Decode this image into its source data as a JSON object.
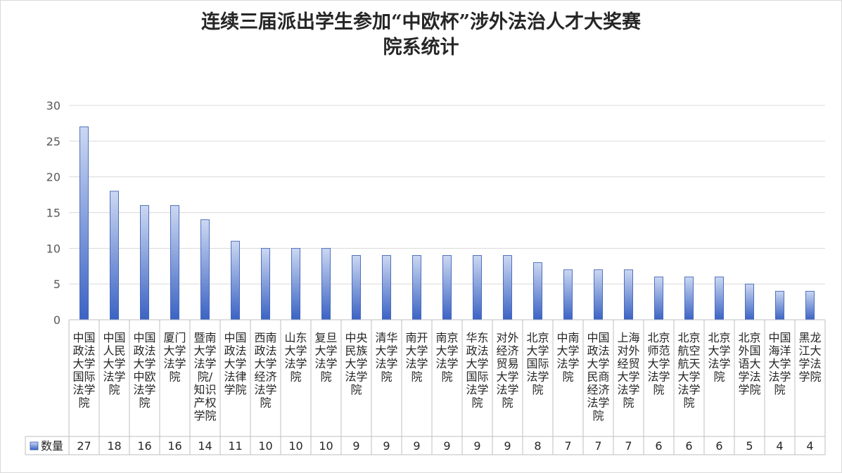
{
  "chart_data": {
    "type": "bar",
    "title_lines": [
      "连续三届派出学生参加“中欧杯”涉外法治人才大奖赛",
      "院系统计"
    ],
    "categories": [
      "中国政法大学国际法学院",
      "中国人民大学法学院",
      "中国政法大学中欧法学院",
      "厦门大学法学院",
      "暨南大学法学院/知识产权学院",
      "中国政法大学法律学院",
      "西南政法大学经济法学院",
      "山东大学法学院",
      "复旦大学法学院",
      "中央民族大学法学院",
      "清华大学法学院",
      "南开大学法学院",
      "南京大学法学院",
      "华东政法大学国际法学院",
      "对外经济贸易大学法学院",
      "北京大学国际法学院",
      "中南大学法学院",
      "中国政法大学民商经济法学院",
      "上海对外经贸大学法学院",
      "北京师范大学法学院",
      "北京航空航天大学法学院",
      "北京大学法学院",
      "北京外国语大学法学院",
      "中国海洋大学法学院",
      "黑龙江大学法学院"
    ],
    "category_lines": [
      [
        "中国",
        "政法",
        "大学",
        "国际",
        "法学",
        "院"
      ],
      [
        "中国",
        "人民",
        "大学",
        "法学",
        "院"
      ],
      [
        "中国",
        "政法",
        "大学",
        "中欧",
        "法学",
        "院"
      ],
      [
        "厦门",
        "大学",
        "法学",
        "院"
      ],
      [
        "暨南",
        "大学",
        "法学",
        "院/",
        "知识",
        "产权",
        "学院"
      ],
      [
        "中国",
        "政法",
        "大学",
        "法律",
        "学院"
      ],
      [
        "西南",
        "政法",
        "大学",
        "经济",
        "法学",
        "院"
      ],
      [
        "山东",
        "大学",
        "法学",
        "院"
      ],
      [
        "复旦",
        "大学",
        "法学",
        "院"
      ],
      [
        "中央",
        "民族",
        "大学",
        "法学",
        "院"
      ],
      [
        "清华",
        "大学",
        "法学",
        "院"
      ],
      [
        "南开",
        "大学",
        "法学",
        "院"
      ],
      [
        "南京",
        "大学",
        "法学",
        "院"
      ],
      [
        "华东",
        "政法",
        "大学",
        "国际",
        "法学",
        "院"
      ],
      [
        "对外",
        "经济",
        "贸易",
        "大学",
        "法学",
        "院"
      ],
      [
        "北京",
        "大学",
        "国际",
        "法学",
        "院"
      ],
      [
        "中南",
        "大学",
        "法学",
        "院"
      ],
      [
        "中国",
        "政法",
        "大学",
        "民商",
        "经济",
        "法学",
        "院"
      ],
      [
        "上海",
        "对外",
        "经贸",
        "大学",
        "法学",
        "院"
      ],
      [
        "北京",
        "师范",
        "大学",
        "法学",
        "院"
      ],
      [
        "北京",
        "航空",
        "航天",
        "大学",
        "法学",
        "院"
      ],
      [
        "北京",
        "大学",
        "法学",
        "院"
      ],
      [
        "北京",
        "外国",
        "语大",
        "学法",
        "学院"
      ],
      [
        "中国",
        "海洋",
        "大学",
        "法学",
        "院"
      ],
      [
        "黑龙",
        "江大",
        "学法",
        "学院"
      ]
    ],
    "series": [
      {
        "name": "数量",
        "values": [
          27,
          18,
          16,
          16,
          14,
          11,
          10,
          10,
          10,
          9,
          9,
          9,
          9,
          9,
          9,
          8,
          7,
          7,
          7,
          6,
          6,
          6,
          5,
          4,
          4
        ]
      }
    ],
    "ylim": [
      0,
      30
    ],
    "yticks": [
      0,
      5,
      10,
      15,
      20,
      25,
      30
    ],
    "grid": true,
    "legend": "data-table",
    "colors": {
      "bar_top": "#ccd8f2",
      "bar_bottom": "#3b63c4",
      "bar_edge": "#2f55b0",
      "grid": "#d9d9d9",
      "table_line": "#bfbfbf"
    }
  }
}
